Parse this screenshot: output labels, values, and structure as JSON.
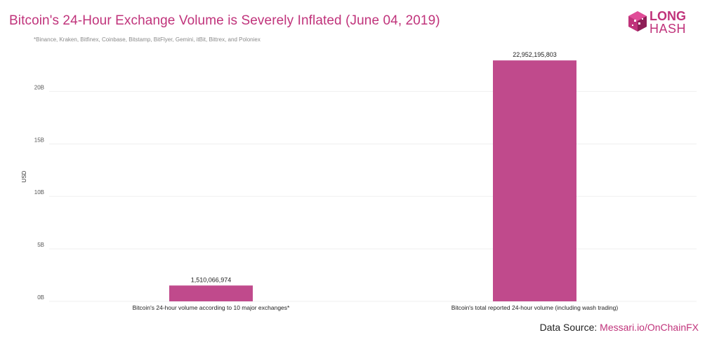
{
  "header": {
    "title": "Bitcoin's 24-Hour Exchange Volume is Severely Inflated (June 04, 2019)",
    "subtitle": "*Binance, Kraken, Bitfinex, Coinbase, Bitstamp, BitFlyer, Gemini, itBit, Bittrex, and Poloniex"
  },
  "logo": {
    "line1": "LONG",
    "line2": "HASH"
  },
  "footer": {
    "source_label": "Data Source:",
    "source_link": "Messari.io/OnChainFX"
  },
  "colors": {
    "accent": "#c0337b",
    "bar": "#c04a8c",
    "grid": "#efefef",
    "logo_cube": "#c0337b"
  },
  "chart_data": {
    "type": "bar",
    "title": "Bitcoin's 24-Hour Exchange Volume is Severely Inflated (June 04, 2019)",
    "ylabel": "USD",
    "xlabel": "",
    "ylim": [
      0,
      23500000000
    ],
    "yticks": [
      0,
      5000000000,
      10000000000,
      15000000000,
      20000000000
    ],
    "ytick_labels": [
      "0B",
      "5B",
      "10B",
      "15B",
      "20B"
    ],
    "categories": [
      "Bitcoin's 24-hour volume according to 10 major exchanges*",
      "Bitcoin's total reported 24-hour volume (including wash trading)"
    ],
    "values": [
      1510066974,
      22952195803
    ],
    "value_labels": [
      "1,510,066,974",
      "22,952,195,803"
    ],
    "grid": true,
    "legend": "none"
  }
}
